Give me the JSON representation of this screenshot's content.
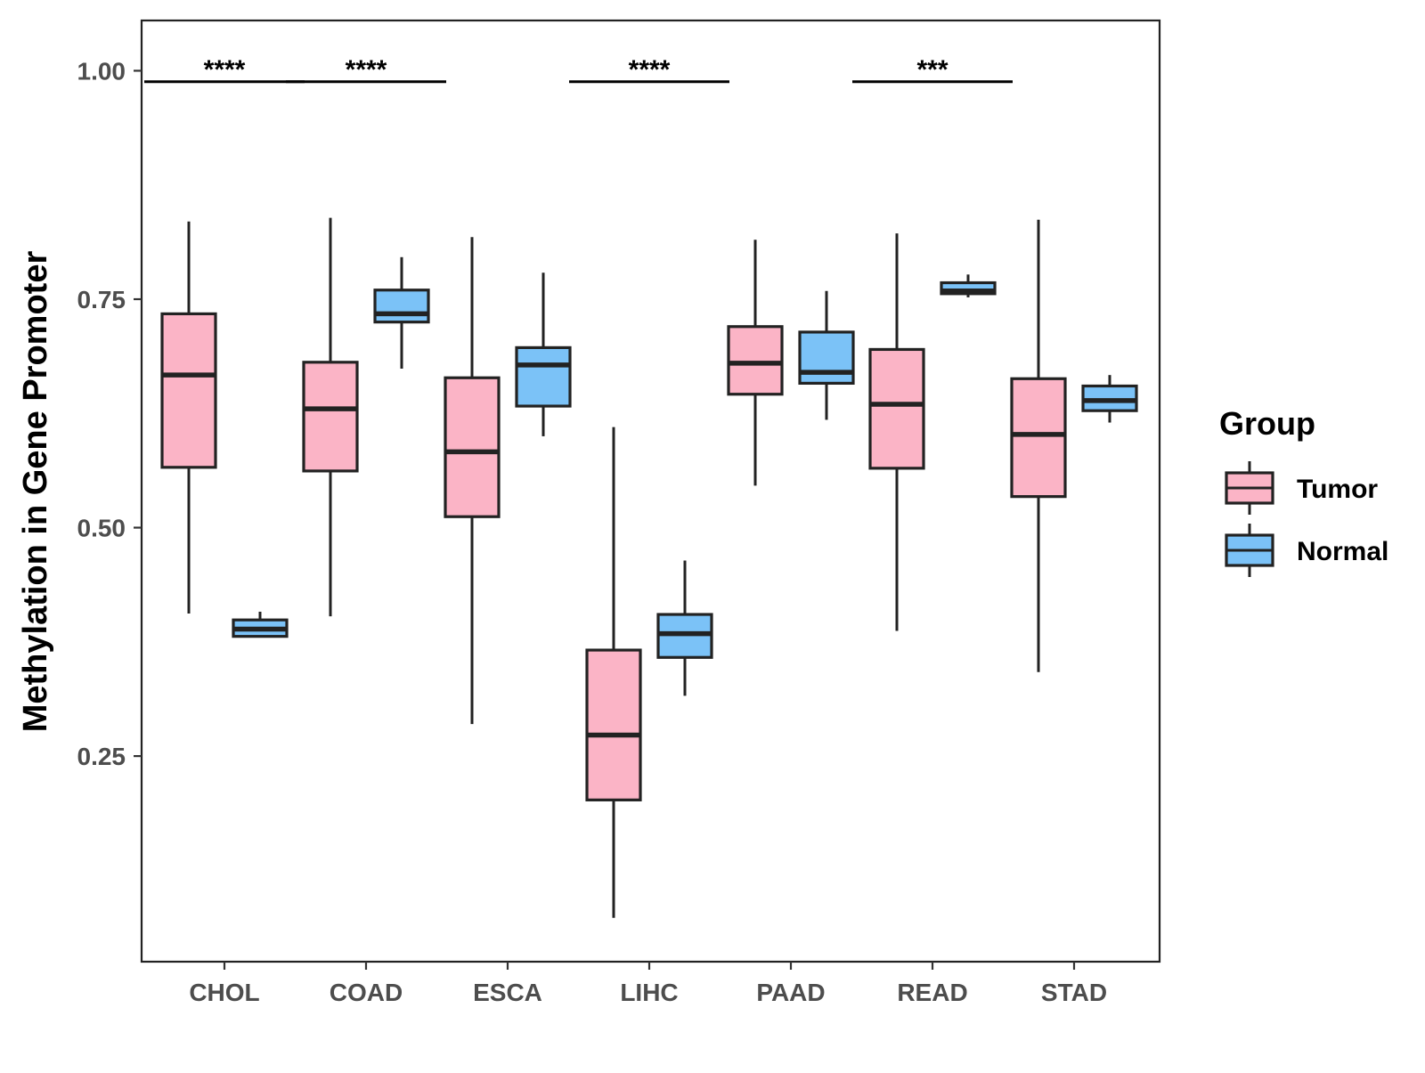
{
  "chart_data": {
    "type": "boxplot",
    "title": "",
    "xlabel": "",
    "ylabel": "Methylation in Gene Promoter",
    "ylim": [
      0.025,
      1.055
    ],
    "yticks": [
      0.25,
      0.5,
      0.75,
      1.0
    ],
    "ytick_labels": [
      "0.25",
      "0.50",
      "0.75",
      "1.00"
    ],
    "categories": [
      "CHOL",
      "COAD",
      "ESCA",
      "LIHC",
      "PAAD",
      "READ",
      "STAD"
    ],
    "legend": {
      "title": "Group",
      "position": "right",
      "entries": [
        {
          "name": "Tumor",
          "color": "#fbb4c6"
        },
        {
          "name": "Normal",
          "color": "#7bc2f7"
        }
      ]
    },
    "series": [
      {
        "name": "Tumor",
        "color": "#fbb4c6",
        "boxes": [
          {
            "category": "CHOL",
            "low": 0.406,
            "q1": 0.566,
            "median": 0.667,
            "q3": 0.734,
            "high": 0.835
          },
          {
            "category": "COAD",
            "low": 0.403,
            "q1": 0.562,
            "median": 0.63,
            "q3": 0.681,
            "high": 0.839
          },
          {
            "category": "ESCA",
            "low": 0.285,
            "q1": 0.512,
            "median": 0.583,
            "q3": 0.664,
            "high": 0.818
          },
          {
            "category": "LIHC",
            "low": 0.073,
            "q1": 0.202,
            "median": 0.273,
            "q3": 0.366,
            "high": 0.61
          },
          {
            "category": "PAAD",
            "low": 0.546,
            "q1": 0.646,
            "median": 0.68,
            "q3": 0.72,
            "high": 0.815
          },
          {
            "category": "READ",
            "low": 0.387,
            "q1": 0.565,
            "median": 0.635,
            "q3": 0.695,
            "high": 0.822
          },
          {
            "category": "STAD",
            "low": 0.342,
            "q1": 0.534,
            "median": 0.602,
            "q3": 0.663,
            "high": 0.837
          }
        ]
      },
      {
        "name": "Normal",
        "color": "#7bc2f7",
        "boxes": [
          {
            "category": "CHOL",
            "low": 0.381,
            "q1": 0.381,
            "median": 0.389,
            "q3": 0.399,
            "high": 0.408
          },
          {
            "category": "COAD",
            "low": 0.674,
            "q1": 0.725,
            "median": 0.734,
            "q3": 0.76,
            "high": 0.796
          },
          {
            "category": "ESCA",
            "low": 0.6,
            "q1": 0.633,
            "median": 0.678,
            "q3": 0.697,
            "high": 0.779
          },
          {
            "category": "LIHC",
            "low": 0.316,
            "q1": 0.358,
            "median": 0.384,
            "q3": 0.405,
            "high": 0.464
          },
          {
            "category": "PAAD",
            "low": 0.618,
            "q1": 0.658,
            "median": 0.67,
            "q3": 0.714,
            "high": 0.759
          },
          {
            "category": "READ",
            "low": 0.752,
            "q1": 0.756,
            "median": 0.759,
            "q3": 0.768,
            "high": 0.777
          },
          {
            "category": "STAD",
            "low": 0.615,
            "q1": 0.628,
            "median": 0.639,
            "q3": 0.655,
            "high": 0.667
          }
        ]
      }
    ],
    "annotations": [
      {
        "category": "CHOL",
        "label": "****",
        "y": 0.988
      },
      {
        "category": "COAD",
        "label": "****",
        "y": 0.988
      },
      {
        "category": "LIHC",
        "label": "****",
        "y": 0.988
      },
      {
        "category": "READ",
        "label": "***",
        "y": 0.988
      }
    ]
  },
  "colors": {
    "panel_border": "#222222",
    "box_stroke": "#222222",
    "tick_text": "#4d4d4d"
  }
}
